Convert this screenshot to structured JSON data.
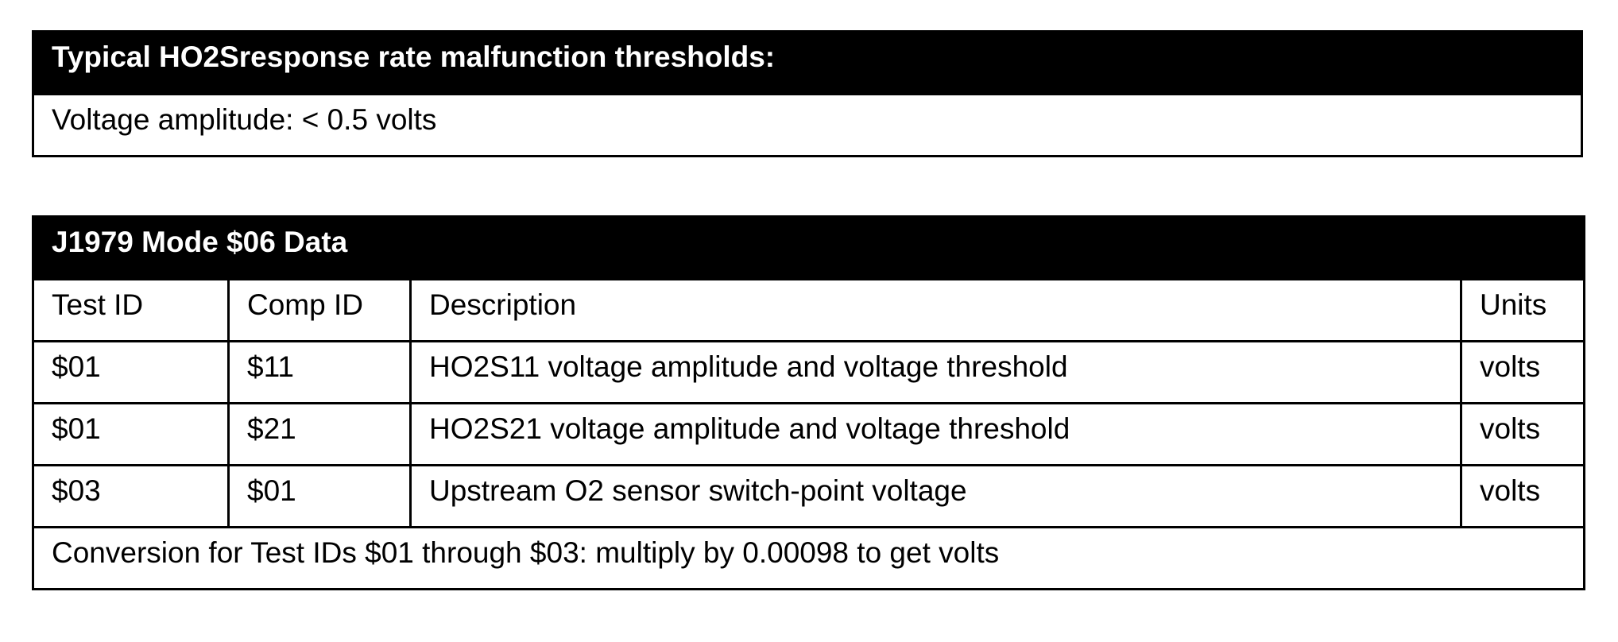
{
  "thresholds": {
    "title": "Typical HO2Sresponse rate malfunction thresholds:",
    "rows": [
      "Voltage amplitude: < 0.5 volts"
    ]
  },
  "mode06": {
    "title": "J1979 Mode $06 Data",
    "columns": [
      "Test ID",
      "Comp ID",
      "Description",
      "Units"
    ],
    "rows": [
      [
        "$01",
        "$11",
        "HO2S11 voltage amplitude and voltage threshold",
        "volts"
      ],
      [
        "$01",
        "$21",
        "HO2S21 voltage amplitude and voltage threshold",
        "volts"
      ],
      [
        "$03",
        "$01",
        "Upstream O2 sensor switch-point voltage",
        "volts"
      ]
    ],
    "footer": "Conversion for Test IDs $01 through $03: multiply by 0.00098 to get volts"
  }
}
